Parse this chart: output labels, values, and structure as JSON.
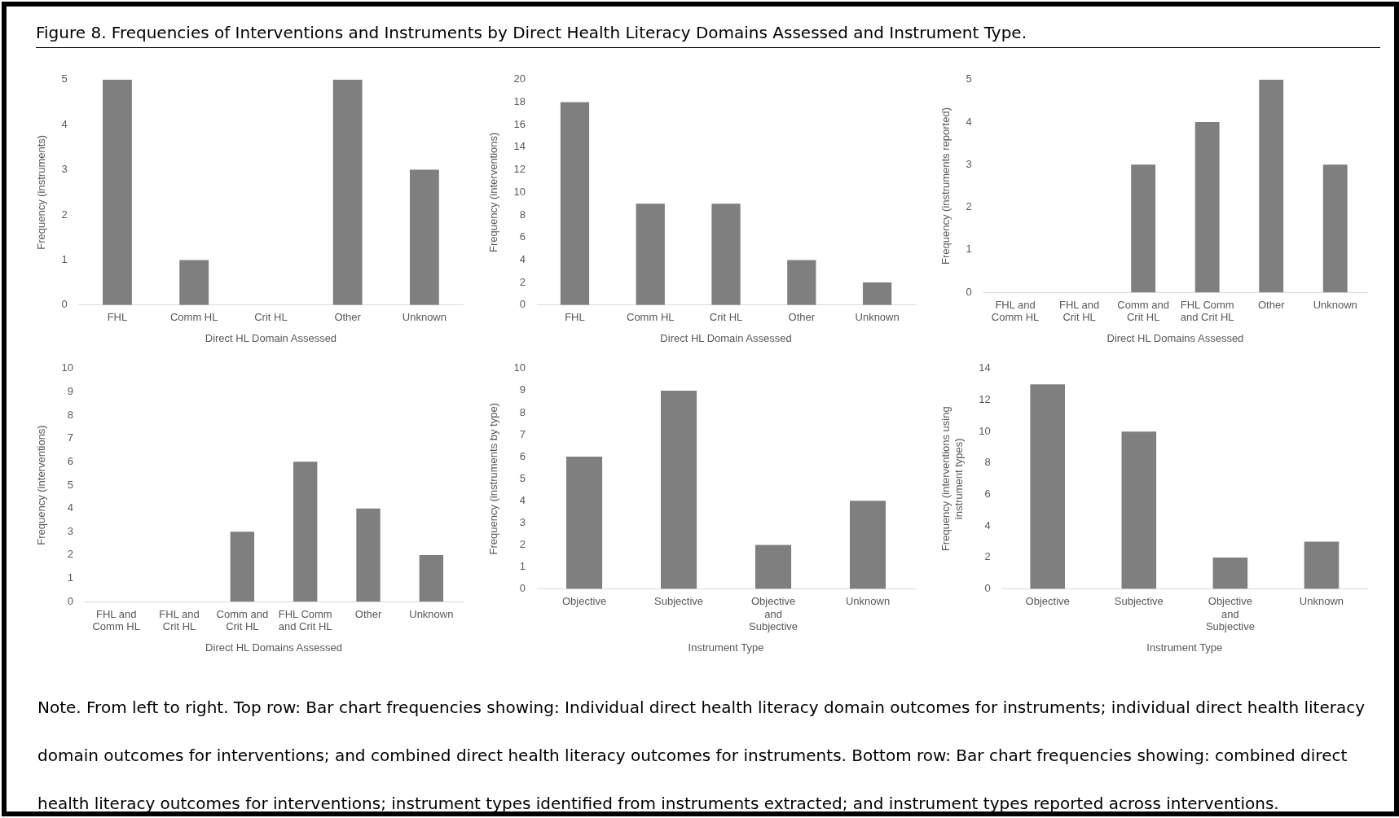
{
  "chart_data": [
    {
      "type": "bar",
      "title": "Figure 8. Frequencies of Interventions and Instruments by Direct Health Literacy Domains Assessed and Instrument Type.",
      "categories": [
        "FHL",
        "Comm HL",
        "Crit HL",
        "Other",
        "Unknown"
      ],
      "values": [
        5,
        1,
        0,
        5,
        3
      ],
      "color": "#7f7f7f",
      "ylim": [
        0,
        5
      ],
      "yticks": [
        0,
        1,
        2,
        3,
        4,
        5
      ],
      "ylabel": "Frequency (instruments)",
      "xlabel": "Direct HL Domain Assessed",
      "grid": false,
      "legend": false
    },
    {
      "type": "bar",
      "categories": [
        "FHL",
        "Comm HL",
        "Crit HL",
        "Other",
        "Unknown"
      ],
      "values": [
        18,
        9,
        9,
        4,
        2
      ],
      "color": "#7f7f7f",
      "ylim": [
        0,
        20
      ],
      "yticks": [
        0,
        2,
        4,
        6,
        8,
        10,
        12,
        14,
        16,
        18,
        20
      ],
      "ylabel": "Frequency (interventions)",
      "xlabel": "Direct HL Domain Assessed",
      "grid": false,
      "legend": false
    },
    {
      "type": "bar",
      "categories": [
        "FHL and Comm HL",
        "FHL and Crit HL",
        "Comm and Crit HL",
        "FHL Comm and Crit HL",
        "Other",
        "Unknown"
      ],
      "values": [
        0,
        0,
        3,
        4,
        5,
        3
      ],
      "color": "#7f7f7f",
      "ylim": [
        0,
        5
      ],
      "yticks": [
        0,
        1,
        2,
        3,
        4,
        5
      ],
      "ylabel": "Frequency (instruments reported)",
      "xlabel": "Direct HL Domains Assessed",
      "grid": false,
      "legend": false
    },
    {
      "type": "bar",
      "categories": [
        "FHL and Comm HL",
        "FHL and Crit HL",
        "Comm and Crit HL",
        "FHL Comm and Crit HL",
        "Other",
        "Unknown"
      ],
      "values": [
        0,
        0,
        3,
        6,
        4,
        2
      ],
      "color": "#7f7f7f",
      "ylim": [
        0,
        10
      ],
      "yticks": [
        0,
        1,
        2,
        3,
        4,
        5,
        6,
        7,
        8,
        9,
        10
      ],
      "ylabel": "Frequency (interventions)",
      "xlabel": "Direct HL Domains Assessed",
      "grid": false,
      "legend": false
    },
    {
      "type": "bar",
      "categories": [
        "Objective",
        "Subjective",
        "Objective and Subjective",
        "Unknown"
      ],
      "values": [
        6,
        9,
        2,
        4
      ],
      "color": "#7f7f7f",
      "ylim": [
        0,
        10
      ],
      "yticks": [
        0,
        1,
        2,
        3,
        4,
        5,
        6,
        7,
        8,
        9,
        10
      ],
      "ylabel": "Frequency (instruments by type)",
      "xlabel": "Instrument Type",
      "grid": false,
      "legend": false
    },
    {
      "type": "bar",
      "categories": [
        "Objective",
        "Subjective",
        "Objective and Subjective",
        "Unknown"
      ],
      "values": [
        13,
        10,
        2,
        3
      ],
      "color": "#7f7f7f",
      "ylim": [
        0,
        14
      ],
      "yticks": [
        0,
        2,
        4,
        6,
        8,
        10,
        12,
        14
      ],
      "ylabel": "Frequency (interventions using instrument types)",
      "xlabel": "Instrument Type",
      "grid": false,
      "legend": false,
      "annotations": [
        "Note. From left to right. Top row: Bar chart frequencies showing: Individual direct health literacy domain outcomes for instruments; individual direct health literacy domain outcomes for interventions; and combined direct health literacy outcomes for instruments. Bottom row: Bar chart frequencies showing: combined direct health literacy outcomes for interventions; instrument types identified from instruments extracted; and instrument types reported across interventions."
      ]
    }
  ]
}
